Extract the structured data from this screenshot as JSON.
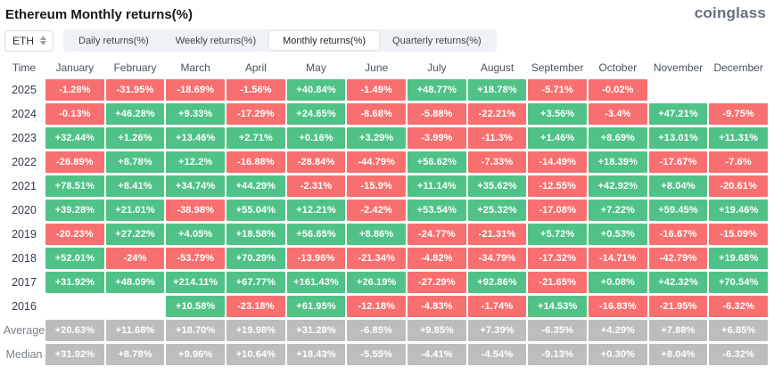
{
  "header": {
    "title": "Ethereum Monthly returns(%)",
    "logo": "coinglass"
  },
  "controls": {
    "symbol_select": {
      "value": "ETH"
    },
    "tabs": [
      {
        "label": "Daily returns(%)",
        "active": false
      },
      {
        "label": "Weekly returns(%)",
        "active": false
      },
      {
        "label": "Monthly returns(%)",
        "active": true
      },
      {
        "label": "Quarterly returns(%)",
        "active": false
      }
    ]
  },
  "table": {
    "time_header": "Time"
  },
  "colors": {
    "positive": "#50c287",
    "negative": "#f7706f",
    "summary": "#bdbdbd",
    "cell_text": "#ffffff"
  },
  "chart_data": {
    "type": "heatmap",
    "title": "Ethereum Monthly returns(%)",
    "columns": [
      "January",
      "February",
      "March",
      "April",
      "May",
      "June",
      "July",
      "August",
      "September",
      "October",
      "November",
      "December"
    ],
    "series": [
      {
        "name": "2025",
        "kind": "year",
        "values": [
          "-1.28%",
          "-31.95%",
          "-18.69%",
          "-1.56%",
          "+40.84%",
          "-1.49%",
          "+48.77%",
          "+18.78%",
          "-5.71%",
          "-0.02%",
          "",
          ""
        ]
      },
      {
        "name": "2024",
        "kind": "year",
        "values": [
          "-0.13%",
          "+46.28%",
          "+9.33%",
          "-17.29%",
          "+24.65%",
          "-8.68%",
          "-5.88%",
          "-22.21%",
          "+3.56%",
          "-3.4%",
          "+47.21%",
          "-9.75%"
        ]
      },
      {
        "name": "2023",
        "kind": "year",
        "values": [
          "+32.44%",
          "+1.26%",
          "+13.46%",
          "+2.71%",
          "+0.16%",
          "+3.29%",
          "-3.99%",
          "-11.3%",
          "+1.46%",
          "+8.69%",
          "+13.01%",
          "+11.31%"
        ]
      },
      {
        "name": "2022",
        "kind": "year",
        "values": [
          "-26.89%",
          "+8.78%",
          "+12.2%",
          "-16.88%",
          "-28.84%",
          "-44.79%",
          "+56.62%",
          "-7.33%",
          "-14.49%",
          "+18.39%",
          "-17.67%",
          "-7.6%"
        ]
      },
      {
        "name": "2021",
        "kind": "year",
        "values": [
          "+78.51%",
          "+8.41%",
          "+34.74%",
          "+44.29%",
          "-2.31%",
          "-15.9%",
          "+11.14%",
          "+35.62%",
          "-12.55%",
          "+42.92%",
          "+8.04%",
          "-20.61%"
        ]
      },
      {
        "name": "2020",
        "kind": "year",
        "values": [
          "+39.28%",
          "+21.01%",
          "-38.98%",
          "+55.04%",
          "+12.21%",
          "-2.42%",
          "+53.54%",
          "+25.32%",
          "-17.08%",
          "+7.22%",
          "+59.45%",
          "+19.46%"
        ]
      },
      {
        "name": "2019",
        "kind": "year",
        "values": [
          "-20.23%",
          "+27.22%",
          "+4.05%",
          "+18.58%",
          "+56.65%",
          "+8.86%",
          "-24.77%",
          "-21.31%",
          "+5.72%",
          "+0.53%",
          "-16.67%",
          "-15.09%"
        ]
      },
      {
        "name": "2018",
        "kind": "year",
        "values": [
          "+52.01%",
          "-24%",
          "-53.79%",
          "+70.29%",
          "-13.96%",
          "-21.34%",
          "-4.82%",
          "-34.79%",
          "-17.32%",
          "-14.71%",
          "-42.79%",
          "+19.68%"
        ]
      },
      {
        "name": "2017",
        "kind": "year",
        "values": [
          "+31.92%",
          "+48.09%",
          "+214.11%",
          "+67.77%",
          "+161.43%",
          "+26.19%",
          "-27.29%",
          "+92.86%",
          "-21.65%",
          "+0.08%",
          "+42.32%",
          "+70.54%"
        ]
      },
      {
        "name": "2016",
        "kind": "year",
        "values": [
          "",
          "",
          "+10.58%",
          "-23.18%",
          "+61.95%",
          "-12.18%",
          "-4.83%",
          "-1.74%",
          "+14.53%",
          "-16.83%",
          "-21.95%",
          "-6.32%"
        ]
      },
      {
        "name": "Average",
        "kind": "summary",
        "values": [
          "+20.63%",
          "+11.68%",
          "+18.70%",
          "+19.98%",
          "+31.28%",
          "-6.85%",
          "+9.85%",
          "+7.39%",
          "-6.35%",
          "+4.29%",
          "+7.88%",
          "+6.85%"
        ]
      },
      {
        "name": "Median",
        "kind": "summary",
        "values": [
          "+31.92%",
          "+8.78%",
          "+9.96%",
          "+10.64%",
          "+18.43%",
          "-5.55%",
          "-4.41%",
          "-4.54%",
          "-9.13%",
          "+0.30%",
          "+8.04%",
          "-6.32%"
        ]
      }
    ]
  }
}
